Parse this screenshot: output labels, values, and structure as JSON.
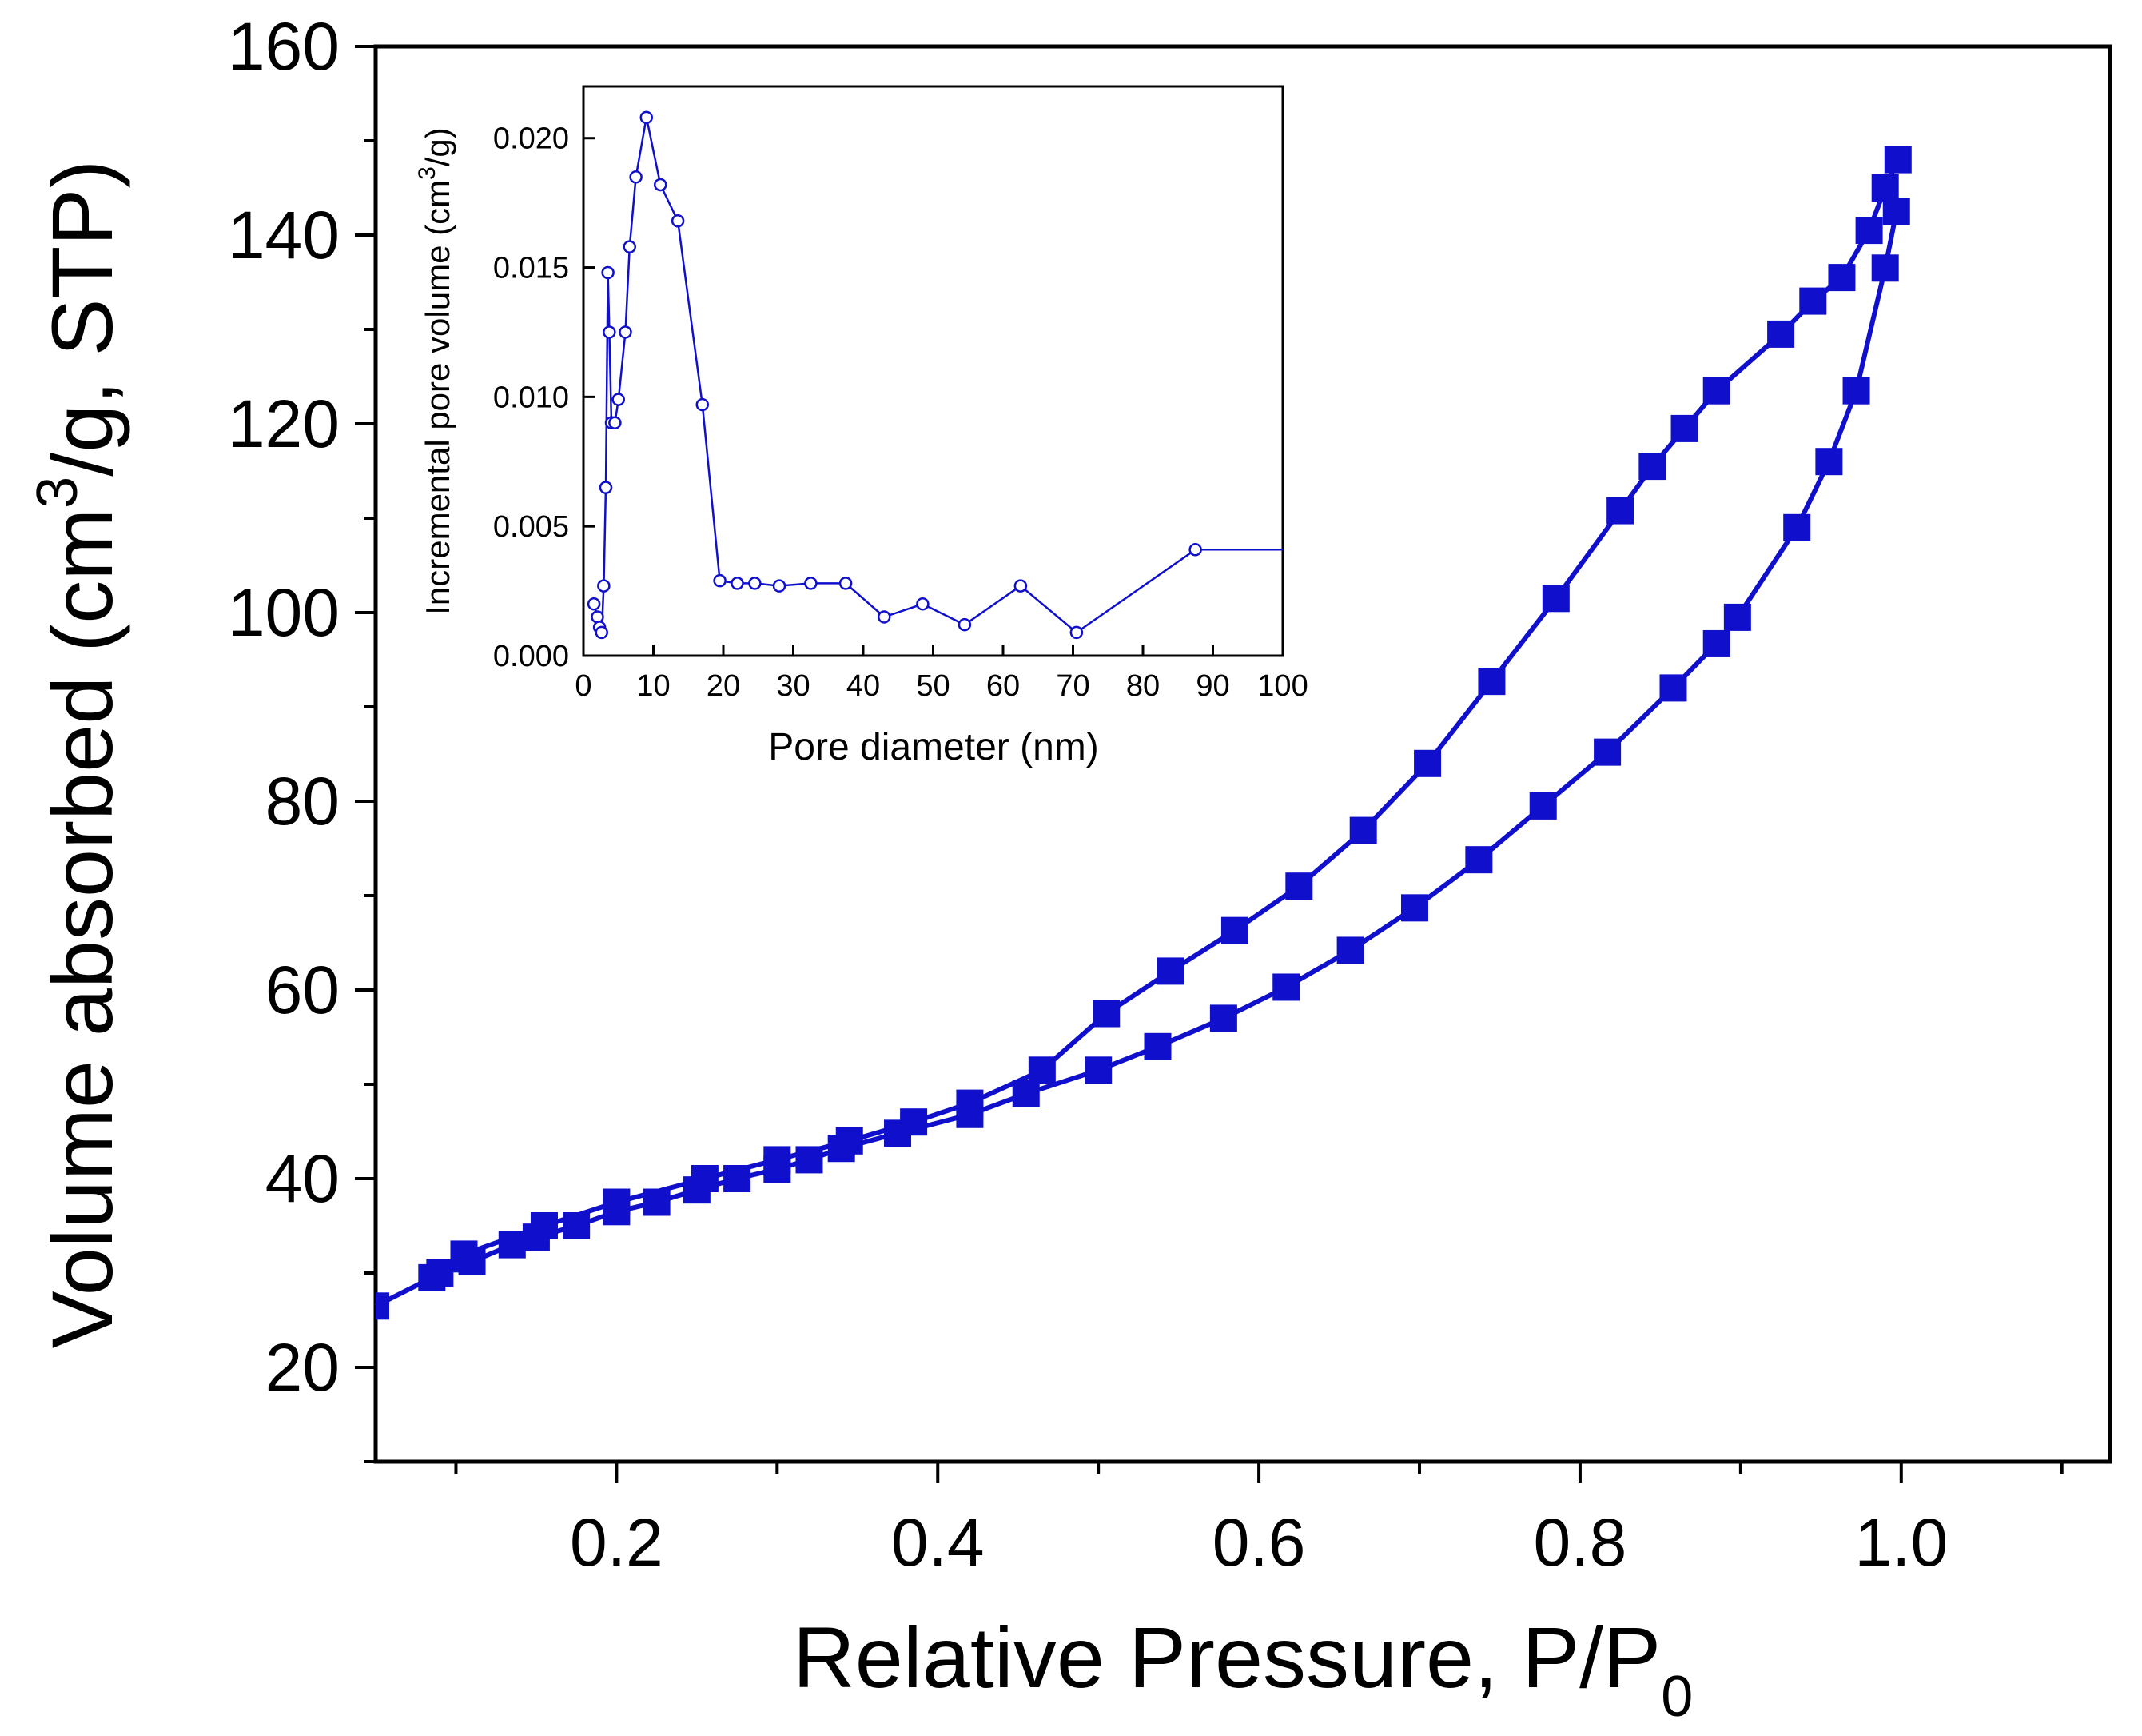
{
  "chart_data": [
    {
      "type": "line",
      "xlabel_main": "Relative Pressure, P/P",
      "xlabel_sub": "0",
      "ylabel_pre": "Volume absorbed (cm",
      "ylabel_sup": "3",
      "ylabel_post": "/g, STP)",
      "xlim": [
        0.05,
        1.13
      ],
      "ylim": [
        10,
        160
      ],
      "xticks": [
        0.2,
        0.4,
        0.6,
        0.8,
        1.0
      ],
      "xtick_labels": [
        "0.2",
        "0.4",
        "0.6",
        "0.8",
        "1.0"
      ],
      "xminor": [
        0.1,
        0.3,
        0.5,
        0.7,
        0.9,
        1.1
      ],
      "yticks": [
        20,
        40,
        60,
        80,
        100,
        120,
        140,
        160
      ],
      "ytick_labels": [
        "20",
        "40",
        "60",
        "80",
        "100",
        "120",
        "140",
        "160"
      ],
      "yminor": [
        10,
        30,
        50,
        70,
        90,
        110,
        130,
        150
      ],
      "color": "#1010cc",
      "series": [
        {
          "role": "adsorption",
          "x": [
            0.05,
            0.085,
            0.09,
            0.105,
            0.11,
            0.135,
            0.15,
            0.175,
            0.2,
            0.225,
            0.25,
            0.275,
            0.3,
            0.32,
            0.34,
            0.375,
            0.42,
            0.455,
            0.5,
            0.537,
            0.578,
            0.617,
            0.657,
            0.697,
            0.737,
            0.777,
            0.817,
            0.858,
            0.885,
            0.898,
            0.935,
            0.955,
            0.972,
            0.99,
            0.997
          ],
          "y": [
            26.5,
            29.5,
            30.0,
            31.5,
            31.2,
            33.0,
            33.8,
            35.0,
            36.5,
            37.5,
            38.8,
            40.0,
            41.0,
            42.0,
            43.2,
            44.8,
            46.8,
            49.0,
            51.5,
            54.0,
            57.0,
            60.3,
            64.2,
            68.7,
            73.8,
            79.5,
            85.2,
            92.0,
            96.7,
            99.5,
            109.0,
            116.0,
            123.5,
            136.5,
            142.5
          ]
        },
        {
          "role": "desorption",
          "x": [
            0.998,
            0.99,
            0.98,
            0.963,
            0.945,
            0.925,
            0.885,
            0.865,
            0.845,
            0.825,
            0.785,
            0.745,
            0.705,
            0.665,
            0.625,
            0.585,
            0.545,
            0.505,
            0.465,
            0.42,
            0.385,
            0.345,
            0.3,
            0.255,
            0.2,
            0.155,
            0.105
          ],
          "y": [
            148.0,
            145.0,
            140.5,
            135.5,
            133.0,
            129.5,
            123.5,
            119.5,
            115.5,
            110.8,
            101.5,
            92.7,
            84.0,
            76.9,
            71.0,
            66.3,
            62.0,
            57.5,
            51.5,
            48.0,
            46.0,
            44.0,
            42.0,
            40.0,
            37.5,
            35.0,
            32.0
          ]
        }
      ]
    },
    {
      "type": "line",
      "xlabel": "Pore diameter (nm)",
      "ylabel_pre": "Incremental pore volume (cm",
      "ylabel_sup": "3",
      "ylabel_post": "/g)",
      "xlim": [
        0,
        100
      ],
      "ylim": [
        0,
        0.022
      ],
      "xticks": [
        0,
        10,
        20,
        30,
        40,
        50,
        60,
        70,
        80,
        90,
        100
      ],
      "xtick_labels": [
        "0",
        "10",
        "20",
        "30",
        "40",
        "50",
        "60",
        "70",
        "80",
        "90",
        "100"
      ],
      "yticks": [
        0,
        0.005,
        0.01,
        0.015,
        0.02
      ],
      "ytick_labels": [
        "0.000",
        "0.005",
        "0.010",
        "0.015",
        "0.020"
      ],
      "color": "#1010cc",
      "x": [
        1.5,
        2.0,
        2.3,
        2.6,
        2.9,
        3.2,
        3.5,
        3.7,
        4.0,
        4.5,
        5.0,
        6.0,
        6.6,
        7.5,
        9.0,
        11.0,
        13.5,
        17.0,
        19.5,
        22.0,
        24.5,
        28.0,
        32.5,
        37.5,
        43.0,
        48.5,
        54.5,
        62.5,
        70.5,
        87.5,
        100.0
      ],
      "y": [
        0.002,
        0.0015,
        0.0011,
        0.0009,
        0.0027,
        0.0065,
        0.0148,
        0.0125,
        0.009,
        0.009,
        0.0099,
        0.0125,
        0.0158,
        0.0185,
        0.0208,
        0.0182,
        0.0168,
        0.0097,
        0.0029,
        0.0028,
        0.0028,
        0.0027,
        0.0028,
        0.0028,
        0.0015,
        0.002,
        0.0012,
        0.0027,
        0.0009,
        0.0041,
        0.0041
      ]
    }
  ]
}
